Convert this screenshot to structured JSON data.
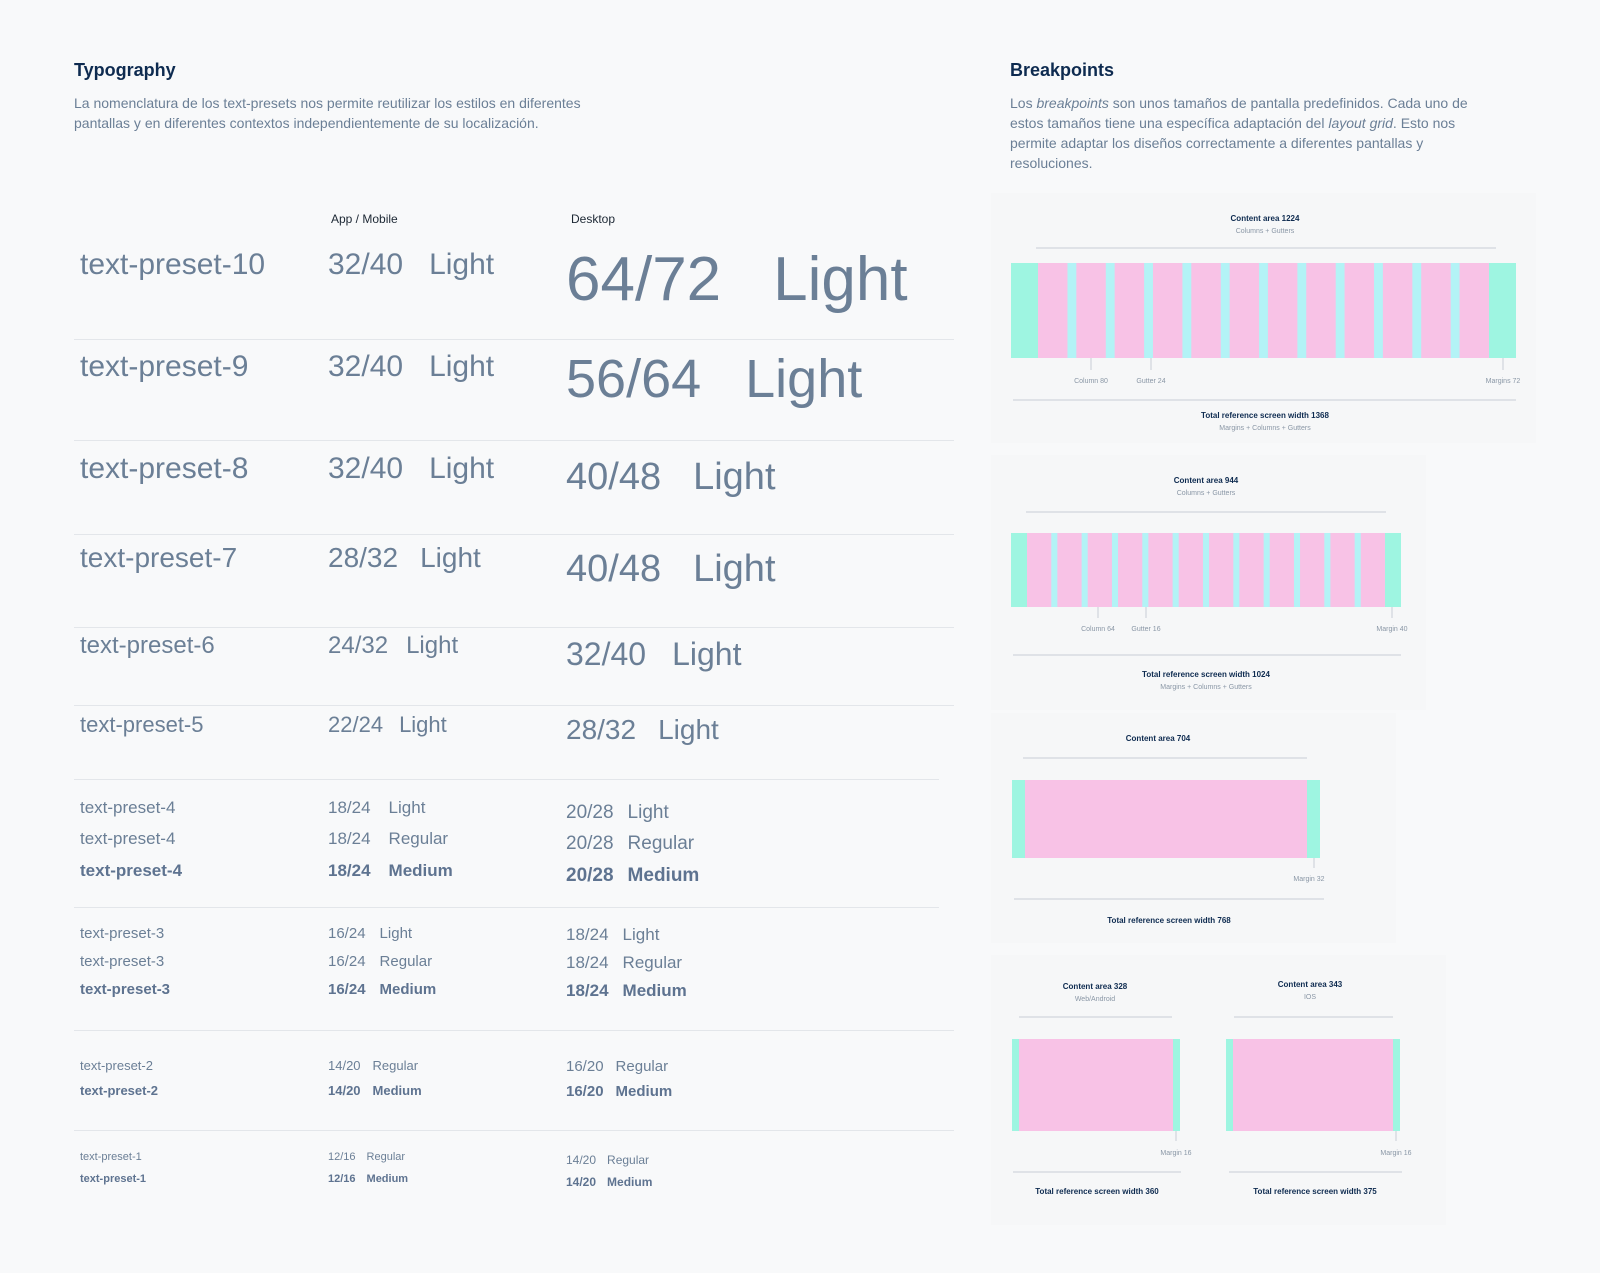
{
  "typography": {
    "title": "Typography",
    "description": "La nomenclatura de los text-presets nos permite reutilizar los estilos en diferentes pantallas y en diferentes contextos independientemente de su localización.",
    "col_app": "App / Mobile",
    "col_desktop": "Desktop",
    "rows": [
      {
        "name": "text-preset-10",
        "app_size": "32/40",
        "app_weight": "Light",
        "desk_size": "64/72",
        "desk_weight": "Light"
      },
      {
        "name": "text-preset-9",
        "app_size": "32/40",
        "app_weight": "Light",
        "desk_size": "56/64",
        "desk_weight": "Light"
      },
      {
        "name": "text-preset-8",
        "app_size": "32/40",
        "app_weight": "Light",
        "desk_size": "40/48",
        "desk_weight": "Light"
      },
      {
        "name": "text-preset-7",
        "app_size": "28/32",
        "app_weight": "Light",
        "desk_size": "40/48",
        "desk_weight": "Light"
      },
      {
        "name": "text-preset-6",
        "app_size": "24/32",
        "app_weight": "Light",
        "desk_size": "32/40",
        "desk_weight": "Light"
      },
      {
        "name": "text-preset-5",
        "app_size": "22/24",
        "app_weight": "Light",
        "desk_size": "28/32",
        "desk_weight": "Light"
      }
    ],
    "group4": [
      {
        "name": "text-preset-4",
        "app_size": "18/24",
        "app_weight": "Light",
        "desk_size": "20/28",
        "desk_weight": "Light"
      },
      {
        "name": "text-preset-4",
        "app_size": "18/24",
        "app_weight": "Regular",
        "desk_size": "20/28",
        "desk_weight": "Regular"
      },
      {
        "name": "text-preset-4",
        "app_size": "18/24",
        "app_weight": "Medium",
        "desk_size": "20/28",
        "desk_weight": "Medium"
      }
    ],
    "group3": [
      {
        "name": "text-preset-3",
        "app_size": "16/24",
        "app_weight": "Light",
        "desk_size": "18/24",
        "desk_weight": "Light"
      },
      {
        "name": "text-preset-3",
        "app_size": "16/24",
        "app_weight": "Regular",
        "desk_size": "18/24",
        "desk_weight": "Regular"
      },
      {
        "name": "text-preset-3",
        "app_size": "16/24",
        "app_weight": "Medium",
        "desk_size": "18/24",
        "desk_weight": "Medium"
      }
    ],
    "group2": [
      {
        "name": "text-preset-2",
        "app_size": "14/20",
        "app_weight": "Regular",
        "desk_size": "16/20",
        "desk_weight": "Regular"
      },
      {
        "name": "text-preset-2",
        "app_size": "14/20",
        "app_weight": "Medium",
        "desk_size": "16/20",
        "desk_weight": "Medium"
      }
    ],
    "group1": [
      {
        "name": "text-preset-1",
        "app_size": "12/16",
        "app_weight": "Regular",
        "desk_size": "14/20",
        "desk_weight": "Regular"
      },
      {
        "name": "text-preset-1",
        "app_size": "12/16",
        "app_weight": "Medium",
        "desk_size": "14/20",
        "desk_weight": "Medium"
      }
    ]
  },
  "breakpoints": {
    "title": "Breakpoints",
    "desc_1": "Los ",
    "desc_em1": "breakpoints",
    "desc_2": " son unos tamaños de pantalla predefinidos. Cada uno de estos tamaños tiene una específica adaptación del ",
    "desc_em2": "layout grid",
    "desc_3": ". Esto nos permite adaptar los diseños correctamente a diferentes pantallas y resoluciones.",
    "colors": {
      "margin": "#9ef5e1",
      "column": "#f8c2e6",
      "gutter": "#b3f3f6",
      "line": "#c8ced6",
      "label": "#8a97a6",
      "heading": "#0e2b50"
    },
    "bp1368": {
      "content": "Content area 1224",
      "content_sub": "Columns + Gutters",
      "column": "Column 80",
      "gutter": "Gutter 24",
      "margin": "Margins 72",
      "total": "Total reference screen width 1368",
      "total_sub": "Margins + Columns + Gutters",
      "columns": 12
    },
    "bp1024": {
      "content": "Content area 944",
      "content_sub": "Columns + Gutters",
      "column": "Column 64",
      "gutter": "Gutter 16",
      "margin": "Margin 40",
      "total": "Total reference screen width 1024",
      "total_sub": "Margins + Columns + Gutters",
      "columns": 12
    },
    "bp768": {
      "content": "Content area 704",
      "margin": "Margin 32",
      "total": "Total reference screen width 768"
    },
    "bp360": {
      "content": "Content area 328",
      "content_sub": "Web/Android",
      "margin": "Margin 16",
      "total": "Total reference screen width 360"
    },
    "bp375": {
      "content": "Content area 343",
      "content_sub": "IOS",
      "margin": "Margin 16",
      "total": "Total reference screen width 375"
    }
  }
}
